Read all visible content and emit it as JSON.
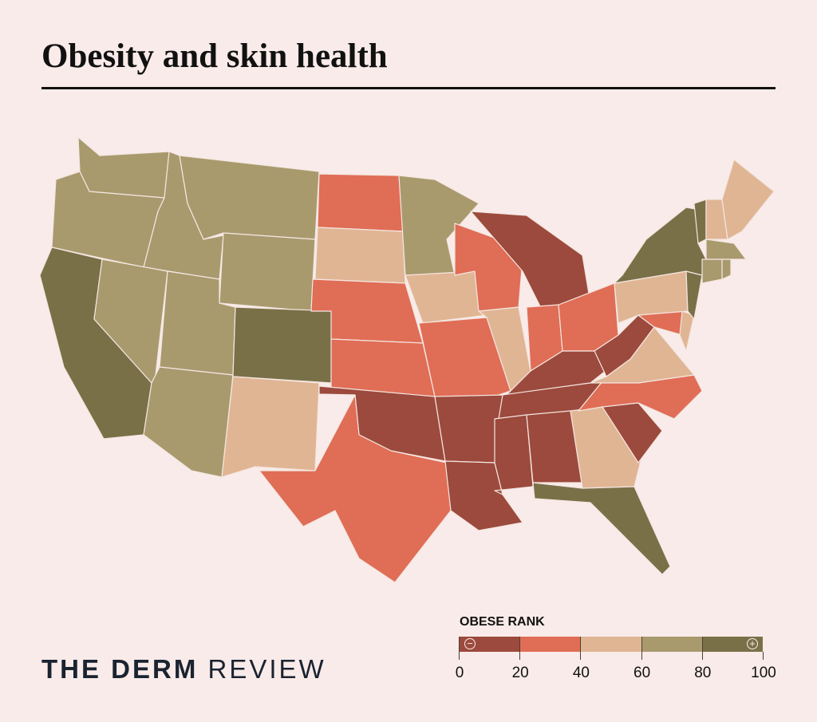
{
  "title": "Obesity and skin health",
  "brand": {
    "bold": "THE DERM",
    "regular": "REVIEW"
  },
  "legend": {
    "title": "OBESE RANK",
    "ticks": [
      "0",
      "20",
      "40",
      "60",
      "80",
      "100"
    ],
    "bins": [
      {
        "range": "0-20",
        "color": "#9c4a3d"
      },
      {
        "range": "20-40",
        "color": "#e06d56"
      },
      {
        "range": "40-60",
        "color": "#e0b594"
      },
      {
        "range": "60-80",
        "color": "#a89a6d"
      },
      {
        "range": "80-100",
        "color": "#7a7048"
      }
    ],
    "low_icon": "minus-circle-icon",
    "high_icon": "plus-circle-icon"
  },
  "states": {
    "WA": 3,
    "OR": 3,
    "CA": 4,
    "ID": 3,
    "NV": 3,
    "MT": 3,
    "WY": 3,
    "UT": 3,
    "AZ": 3,
    "CO": 4,
    "NM": 2,
    "ND": 1,
    "SD": 2,
    "NE": 1,
    "KS": 1,
    "OK": 0,
    "TX": 1,
    "MN": 3,
    "IA": 2,
    "MO": 1,
    "AR": 0,
    "LA": 0,
    "WI": 1,
    "IL": 2,
    "MI": 0,
    "IN": 1,
    "OH": 1,
    "KY": 0,
    "TN": 0,
    "MS": 0,
    "AL": 0,
    "GA": 2,
    "FL": 4,
    "SC": 0,
    "NC": 1,
    "VA": 2,
    "WV": 0,
    "MD": 1,
    "DE": 2,
    "PA": 2,
    "NJ": 4,
    "NY": 4,
    "CT": 3,
    "RI": 3,
    "MA": 3,
    "VT": 4,
    "NH": 2,
    "ME": 2
  }
}
